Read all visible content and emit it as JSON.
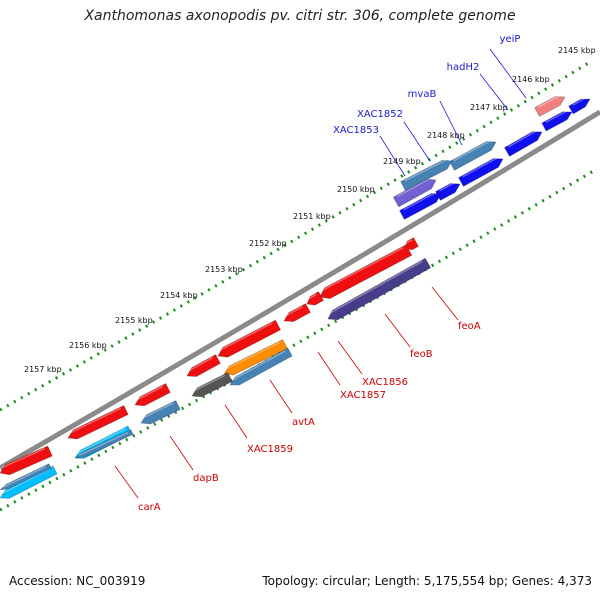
{
  "title": "Xanthomonas axonopodis pv. citri str. 306, complete genome",
  "footer": {
    "accession": "Accession: NC_003919",
    "summary": "Topology: circular; Length: 5,175,554 bp; Genes: 4,373"
  },
  "kbp_labels": [
    "2145 kbp",
    "2146 kbp",
    "2147 kbp",
    "2148 kbp",
    "2149 kbp",
    "2150 kbp",
    "2151 kbp",
    "2152 kbp",
    "2153 kbp",
    "2154 kbp",
    "2155 kbp",
    "2156 kbp",
    "2157 kbp"
  ],
  "genes_forward": [
    "yeiP",
    "hadH2",
    "mvaB",
    "XAC1852",
    "XAC1853"
  ],
  "genes_reverse": [
    "feoA",
    "feoB",
    "XAC1856",
    "XAC1857",
    "avtA",
    "XAC1859",
    "dapB",
    "carA"
  ],
  "colors": {
    "forward_label": "#1a1acc",
    "reverse_label": "#cc0000",
    "backbone": "#888888",
    "ruler": "#228b22"
  }
}
